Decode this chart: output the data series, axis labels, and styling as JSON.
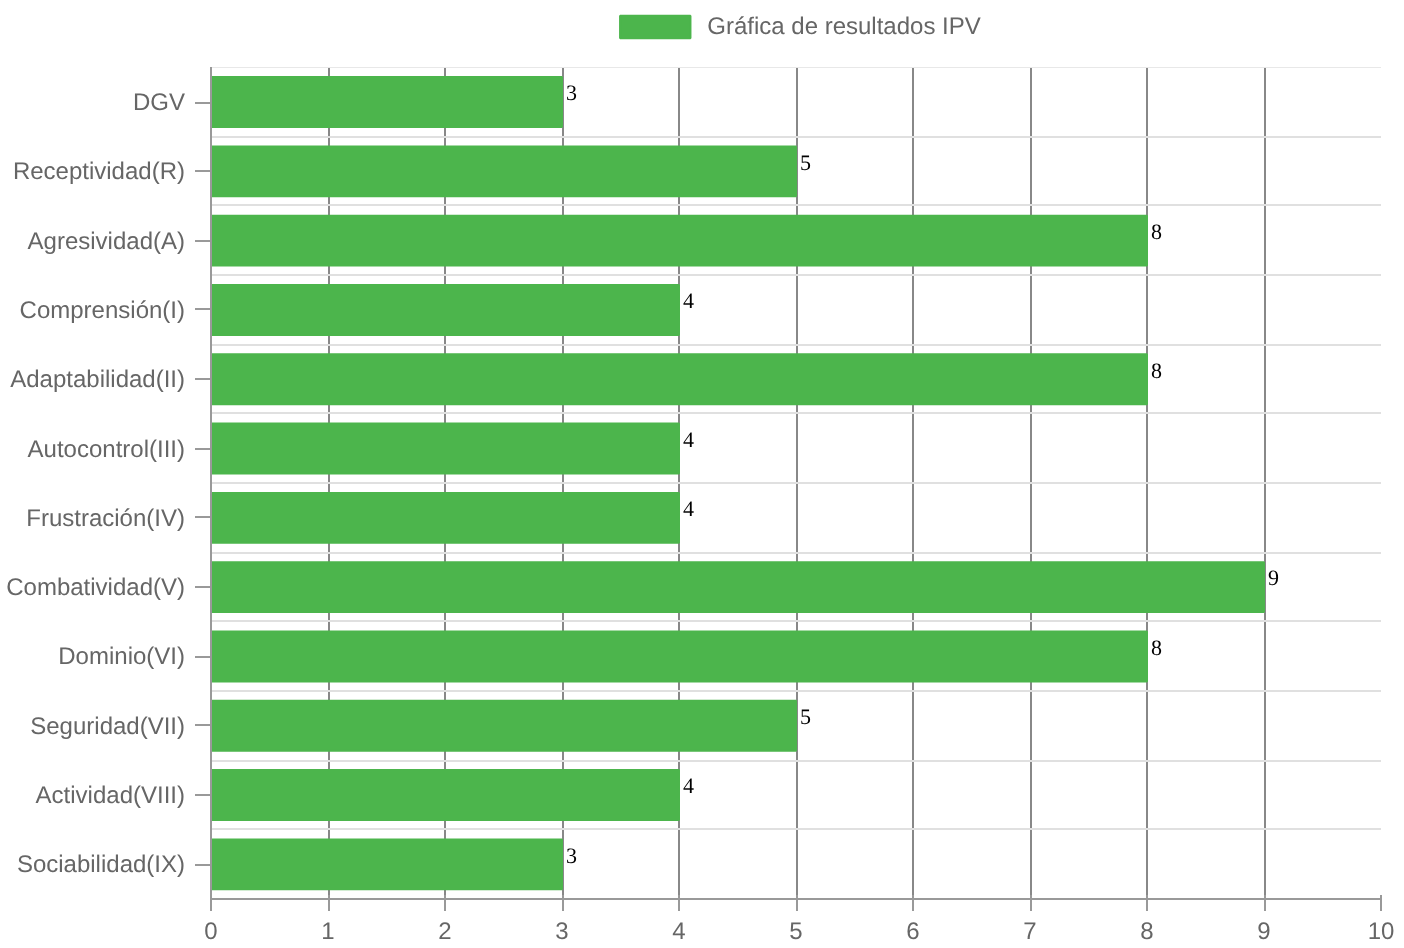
{
  "chart_data": {
    "type": "bar",
    "orientation": "horizontal",
    "categories": [
      "DGV",
      "Receptividad(R)",
      "Agresividad(A)",
      "Comprensión(I)",
      "Adaptabilidad(II)",
      "Autocontrol(III)",
      "Frustración(IV)",
      "Combatividad(V)",
      "Dominio(VI)",
      "Seguridad(VII)",
      "Actividad(VIII)",
      "Sociabilidad(IX)"
    ],
    "series": [
      {
        "name": "Gráfica de resultados IPV",
        "color": "#4cb54c",
        "values": [
          3,
          5,
          8,
          4,
          8,
          4,
          4,
          9,
          8,
          5,
          4,
          3
        ]
      }
    ],
    "xlim": [
      0,
      10
    ],
    "xticks": [
      0,
      1,
      2,
      3,
      4,
      5,
      6,
      7,
      8,
      9,
      10
    ],
    "grid": true,
    "legend": "top",
    "data_labels": true
  }
}
